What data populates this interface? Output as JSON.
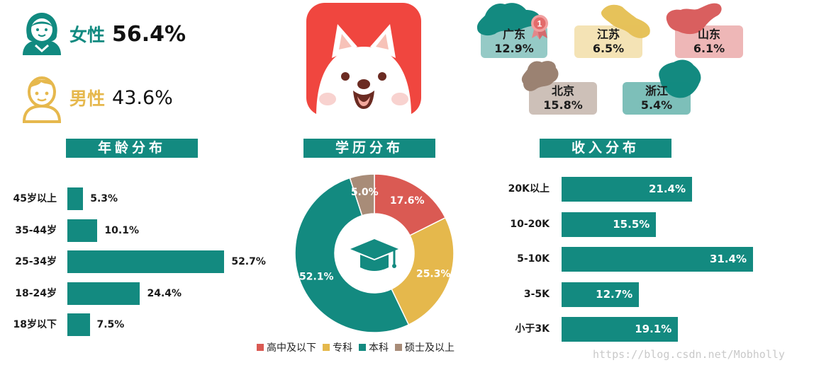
{
  "gender": {
    "female": {
      "label": "女性",
      "value": "56.4%"
    },
    "male": {
      "label": "男性",
      "value": "43.6%"
    }
  },
  "regions": [
    {
      "name": "广东",
      "value": "12.9%",
      "color": "#138a80",
      "badge": "1"
    },
    {
      "name": "江苏",
      "value": "6.5%",
      "color": "#e6c25a"
    },
    {
      "name": "山东",
      "value": "6.1%",
      "color": "#d95f5f"
    },
    {
      "name": "北京",
      "value": "15.8%",
      "color": "#9b8272"
    },
    {
      "name": "浙江",
      "value": "5.4%",
      "color": "#138a80"
    }
  ],
  "headers": {
    "age": "年龄分布",
    "education": "学历分布",
    "income": "收入分布"
  },
  "colors": {
    "teal": "#138a80",
    "red": "#da5a53",
    "yellow": "#e5b84c",
    "brown": "#a88c78"
  },
  "chart_data": [
    {
      "type": "bar",
      "orientation": "horizontal",
      "categories": [
        "45岁以上",
        "35-44岁",
        "25-34岁",
        "18-24岁",
        "18岁以下"
      ],
      "values": [
        5.3,
        10.1,
        52.7,
        24.4,
        7.5
      ],
      "value_labels": [
        "5.3%",
        "10.1%",
        "52.7%",
        "24.4%",
        "7.5%"
      ],
      "title": "年龄分布"
    },
    {
      "type": "pie",
      "donut": true,
      "categories": [
        "高中及以下",
        "专科",
        "本科",
        "硕士及以上"
      ],
      "values": [
        17.6,
        25.3,
        52.1,
        5.0
      ],
      "value_labels": [
        "17.6%",
        "25.3%",
        "52.1%",
        "5.0%"
      ],
      "colors": [
        "#da5a53",
        "#e5b84c",
        "#138a80",
        "#a88c78"
      ],
      "title": "学历分布",
      "legend": "bottom",
      "center_icon": "graduation-cap-icon"
    },
    {
      "type": "bar",
      "orientation": "horizontal",
      "categories": [
        "20K以上",
        "10-20K",
        "5-10K",
        "3-5K",
        "小于3K"
      ],
      "values": [
        21.4,
        15.5,
        31.4,
        12.7,
        19.1
      ],
      "value_labels": [
        "21.4%",
        "15.5%",
        "31.4%",
        "12.7%",
        "19.1%"
      ],
      "title": "收入分布"
    }
  ],
  "watermark": "https://blog.csdn.net/Mobholly"
}
